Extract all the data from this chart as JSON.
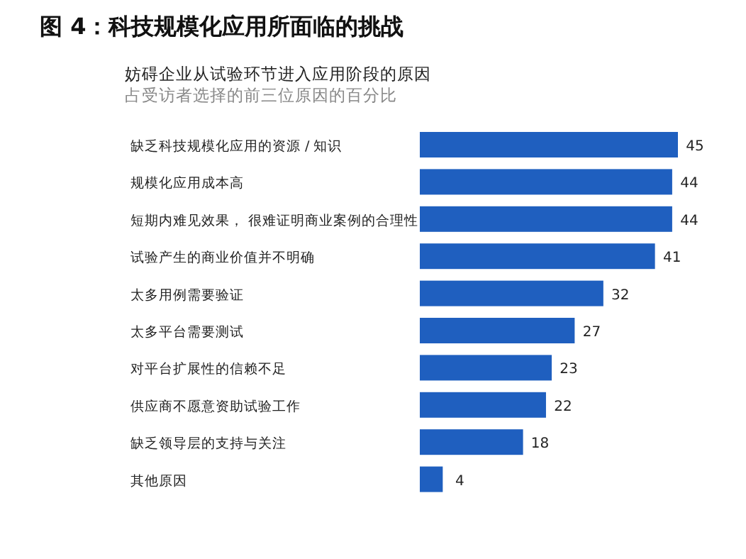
{
  "chart_data": {
    "type": "bar",
    "orientation": "horizontal",
    "title": "图 4：科技规模化应用所面临的挑战",
    "subtitle": "妨碍企业从试验环节进入应用阶段的原因",
    "annotations": [
      "占受访者选择的前三位原因的百分比"
    ],
    "categories": [
      "缺乏科技规模化应用的资源 / 知识",
      "规模化应用成本高",
      "短期内难见效果， 很难证明商业案例的合理性",
      "试验产生的商业价值并不明确",
      "太多用例需要验证",
      "太多平台需要测试",
      "对平台扩展性的信赖不足",
      "供应商不愿意资助试验工作",
      "缺乏领导层的支持与关注",
      "其他原因"
    ],
    "values": [
      45,
      44,
      44,
      41,
      32,
      27,
      23,
      22,
      18,
      4
    ],
    "color": "#1f5fbf",
    "data_labels": true
  }
}
